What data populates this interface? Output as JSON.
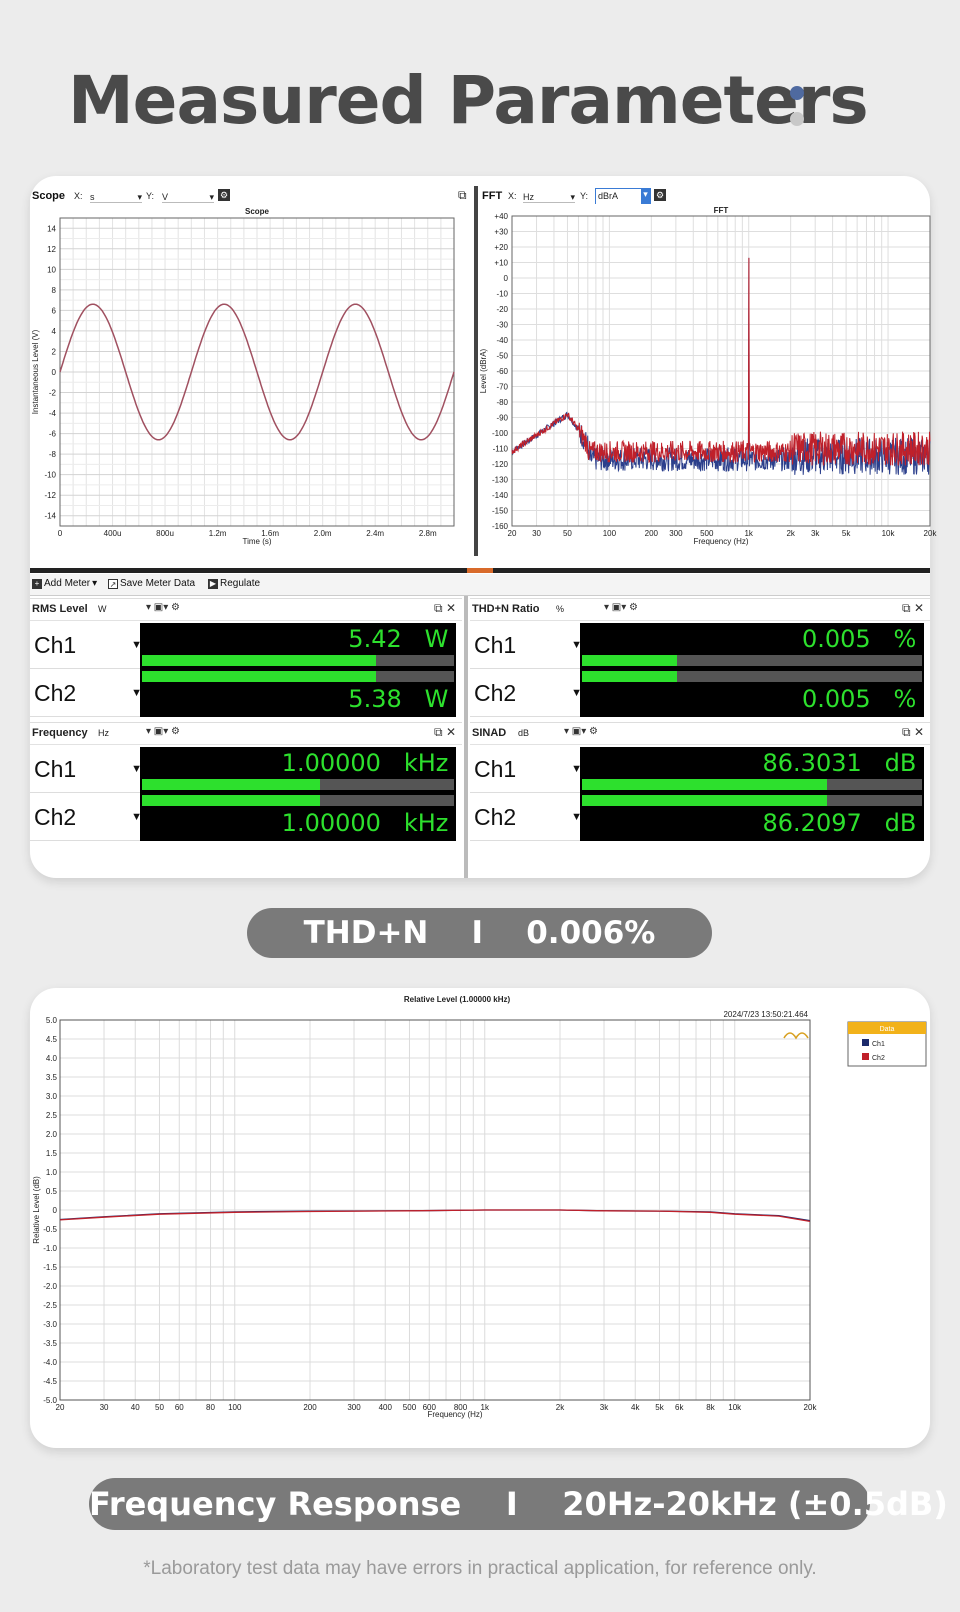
{
  "page": {
    "title": "Measured Parameters",
    "dot_colors": [
      "#4f6aa0",
      "#c8c8c8"
    ],
    "thdn_pill": "THD+N    I    0.006%",
    "fr_pill": "Frequency Response    I    20Hz-20kHz (±0.5dB)",
    "footnote": "*Laboratory test data may have errors in practical application, for reference only."
  },
  "scope": {
    "panel_label": "Scope",
    "x_label": "X:",
    "x_unit": "s",
    "y_label": "Y:",
    "y_unit": "V",
    "plot_title": "Scope",
    "xlabel": "Time (s)",
    "ylabel": "Instantaneous Level (V)"
  },
  "fft": {
    "panel_label": "FFT",
    "x_label": "X:",
    "x_unit": "Hz",
    "y_label": "Y:",
    "y_unit": "dBrA",
    "plot_title": "FFT",
    "xlabel": "Frequency (Hz)",
    "ylabel": "Level (dBrA)"
  },
  "toolbar": {
    "add_meter": "Add Meter",
    "save_meter_data": "Save Meter Data",
    "regulate": "Regulate"
  },
  "meters": {
    "rms": {
      "title": "RMS Level",
      "unit": "W",
      "ch1": "Ch1",
      "ch2": "Ch2",
      "ch1_value": "5.42",
      "ch2_value": "5.38",
      "value_unit": "W",
      "ch1_fill": 0.75,
      "ch2_fill": 0.75
    },
    "thdn": {
      "title": "THD+N Ratio",
      "unit": "%",
      "ch1": "Ch1",
      "ch2": "Ch2",
      "ch1_value": "0.005",
      "ch2_value": "0.005",
      "value_unit": "%",
      "ch1_fill": 0.28,
      "ch2_fill": 0.28
    },
    "freq": {
      "title": "Frequency",
      "unit": "Hz",
      "ch1": "Ch1",
      "ch2": "Ch2",
      "ch1_value": "1.00000",
      "ch2_value": "1.00000",
      "value_unit": "kHz",
      "ch1_fill": 0.57,
      "ch2_fill": 0.57
    },
    "sinad": {
      "title": "SINAD",
      "unit": "dB",
      "ch1": "Ch1",
      "ch2": "Ch2",
      "ch1_value": "86.3031",
      "ch2_value": "86.2097",
      "value_unit": "dB",
      "ch1_fill": 0.72,
      "ch2_fill": 0.72
    }
  },
  "chart_data": [
    {
      "type": "line",
      "title": "Scope",
      "xlabel": "Time (s)",
      "ylabel": "Instantaneous Level (V)",
      "x_ticks": [
        "0",
        "400u",
        "800u",
        "1.2m",
        "1.6m",
        "2.0m",
        "2.4m",
        "2.8m"
      ],
      "x_tick_values": [
        0,
        0.0004,
        0.0008,
        0.0012,
        0.0016,
        0.002,
        0.0024,
        0.0028
      ],
      "y_ticks": [
        "14",
        "12",
        "10",
        "8",
        "6",
        "4",
        "2",
        "0",
        "-2",
        "-4",
        "-6",
        "-8",
        "-10",
        "-12",
        "-14"
      ],
      "xlim": [
        0,
        0.003
      ],
      "ylim": [
        -15,
        15
      ],
      "grid": true,
      "series": [
        {
          "color": "#a05060",
          "signal": "sine",
          "frequency_hz": 1000,
          "amplitude_v": 6.6
        }
      ]
    },
    {
      "type": "line",
      "title": "FFT",
      "xlabel": "Frequency (Hz)",
      "ylabel": "Level (dBrA)",
      "x_scale": "log",
      "x_ticks": [
        "20",
        "30",
        "50",
        "100",
        "200",
        "300",
        "500",
        "1k",
        "2k",
        "3k",
        "5k",
        "10k",
        "20k"
      ],
      "x_tick_values": [
        20,
        30,
        50,
        100,
        200,
        300,
        500,
        1000,
        2000,
        3000,
        5000,
        10000,
        20000
      ],
      "y_ticks": [
        "+40",
        "+30",
        "+20",
        "+10",
        "0",
        "-10",
        "-20",
        "-30",
        "-40",
        "-50",
        "-60",
        "-70",
        "-80",
        "-90",
        "-100",
        "-110",
        "-120",
        "-130",
        "-140",
        "-150",
        "-160"
      ],
      "xlim": [
        20,
        20000
      ],
      "ylim": [
        -160,
        40
      ],
      "grid": true,
      "series": [
        {
          "color": "#2b3f8c",
          "peak_hz": 1000,
          "peak_db": 13,
          "floor_db": -115
        },
        {
          "color": "#c0202a",
          "peak_hz": 1000,
          "peak_db": 13,
          "floor_db": -110
        }
      ]
    },
    {
      "type": "line",
      "title": "Relative Level (1.00000 kHz)",
      "timestamp": "2024/7/23 13:50:21.464",
      "xlabel": "Frequency (Hz)",
      "ylabel": "Relative Level (dB)",
      "x_scale": "log",
      "x_ticks": [
        "20",
        "30",
        "40",
        "50",
        "60",
        "80",
        "100",
        "200",
        "300",
        "400",
        "500",
        "600",
        "800",
        "1k",
        "2k",
        "3k",
        "4k",
        "5k",
        "6k",
        "8k",
        "10k",
        "20k"
      ],
      "x_tick_values": [
        20,
        30,
        40,
        50,
        60,
        80,
        100,
        200,
        300,
        400,
        500,
        600,
        800,
        1000,
        2000,
        3000,
        4000,
        5000,
        6000,
        8000,
        10000,
        20000
      ],
      "y_ticks": [
        "5.0",
        "4.5",
        "4.0",
        "3.5",
        "3.0",
        "2.5",
        "2.0",
        "1.5",
        "1.0",
        "0.5",
        "0",
        "-0.5",
        "-1.0",
        "-1.5",
        "-2.0",
        "-2.5",
        "-3.0",
        "-3.5",
        "-4.0",
        "-4.5",
        "-5.0"
      ],
      "xlim": [
        20,
        20000
      ],
      "ylim": [
        -5,
        5
      ],
      "grid": true,
      "legend_title": "Data",
      "legend_position": "right",
      "series": [
        {
          "name": "Ch1",
          "color": "#1b2a6b",
          "x": [
            20,
            30,
            50,
            100,
            200,
            500,
            1000,
            2000,
            3000,
            5000,
            8000,
            10000,
            15000,
            20000
          ],
          "y": [
            -0.25,
            -0.18,
            -0.1,
            -0.05,
            -0.03,
            -0.02,
            0,
            0,
            -0.02,
            -0.03,
            -0.05,
            -0.1,
            -0.15,
            -0.28
          ]
        },
        {
          "name": "Ch2",
          "color": "#c0202a",
          "x": [
            20,
            30,
            50,
            100,
            200,
            500,
            1000,
            2000,
            3000,
            5000,
            8000,
            10000,
            15000,
            20000
          ],
          "y": [
            -0.26,
            -0.19,
            -0.11,
            -0.06,
            -0.04,
            -0.02,
            0,
            0,
            -0.02,
            -0.03,
            -0.06,
            -0.11,
            -0.16,
            -0.3
          ]
        }
      ]
    }
  ]
}
